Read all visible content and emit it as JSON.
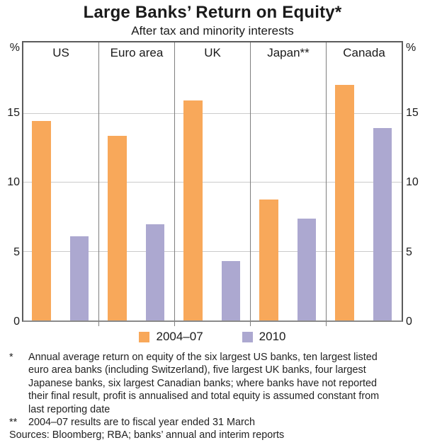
{
  "header": {
    "title": "Large Banks’ Return on Equity*",
    "subtitle": "After tax and minority interests"
  },
  "chart_data": {
    "type": "bar",
    "unit": "%",
    "categories": [
      "US",
      "Euro area",
      "UK",
      "Japan**",
      "Canada"
    ],
    "series": [
      {
        "name": "2004–07",
        "color": "#F8A85A",
        "values": [
          14.5,
          13.4,
          16.0,
          8.8,
          17.1
        ]
      },
      {
        "name": "2010",
        "color": "#ACA8D0",
        "values": [
          6.1,
          7.0,
          4.3,
          7.4,
          14.0
        ]
      }
    ],
    "yticks": [
      0,
      5,
      10,
      15
    ],
    "ymax": 20.2,
    "grid": true,
    "legend_position": "bottom",
    "axis_unit_label_left": "%",
    "axis_unit_label_right": "%"
  },
  "footnotes": [
    {
      "marker": "*",
      "lines": [
        "Annual average return on equity of the six largest US banks, ten largest listed",
        "euro area banks (including Switzerland), five largest UK banks, four largest",
        "Japanese banks, six largest Canadian banks; where banks have not reported",
        "their final result, profit is annualised and total equity is assumed constant from",
        "last reporting date"
      ]
    },
    {
      "marker": "**",
      "lines": [
        "2004–07 results are to fiscal year ended 31 March"
      ]
    },
    {
      "marker": "",
      "lines": [
        "Sources: Bloomberg; RBA; banks’ annual and interim reports"
      ]
    }
  ]
}
